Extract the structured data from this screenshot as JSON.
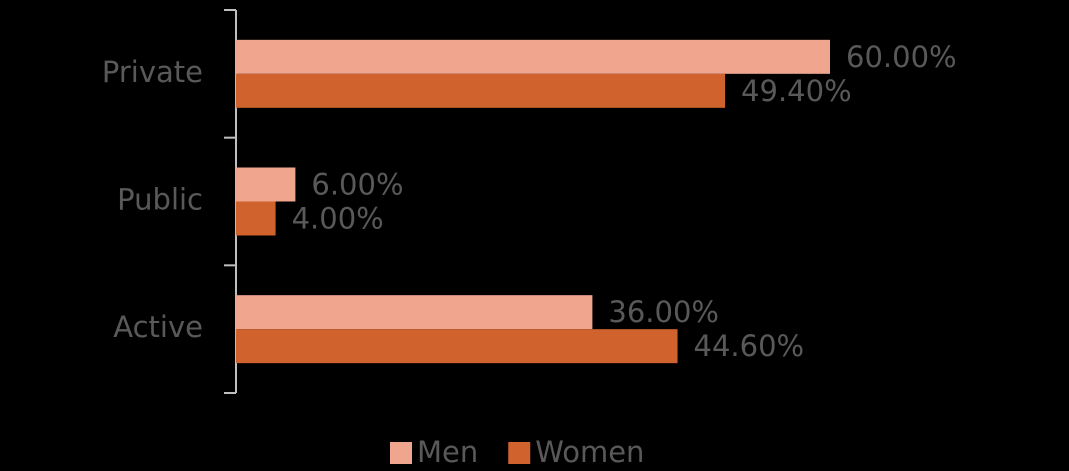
{
  "chart_data": {
    "type": "hbar",
    "categories": [
      "Private",
      "Public",
      "Active"
    ],
    "series": [
      {
        "name": "Men",
        "color": "#f0a58f",
        "values": [
          60,
          6,
          36
        ],
        "value_labels": [
          "60.00%",
          "6.00%",
          "36.00%"
        ]
      },
      {
        "name": "Women",
        "color": "#d0622d",
        "values": [
          49.4,
          4,
          44.6
        ],
        "value_labels": [
          "49.40%",
          "4.00%",
          "44.60%"
        ]
      }
    ],
    "legend": "bottom"
  }
}
